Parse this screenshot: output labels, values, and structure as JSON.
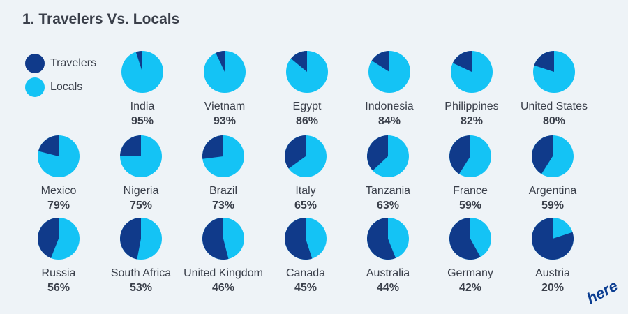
{
  "title": "1. Travelers Vs. Locals",
  "logo": "here",
  "colors": {
    "travelers": "#103a8a",
    "locals": "#14c3f5"
  },
  "legend": [
    {
      "label": "Travelers",
      "color": "#103a8a"
    },
    {
      "label": "Locals",
      "color": "#14c3f5"
    }
  ],
  "chart_data": {
    "type": "pie",
    "series_names": [
      "Travelers",
      "Locals"
    ],
    "value_meaning": "Locals share (%)",
    "items": [
      {
        "country": "India",
        "locals": 95
      },
      {
        "country": "Vietnam",
        "locals": 93
      },
      {
        "country": "Egypt",
        "locals": 86
      },
      {
        "country": "Indonesia",
        "locals": 84
      },
      {
        "country": "Philippines",
        "locals": 82
      },
      {
        "country": "United States",
        "locals": 80
      },
      {
        "country": "Mexico",
        "locals": 79
      },
      {
        "country": "Nigeria",
        "locals": 75
      },
      {
        "country": "Brazil",
        "locals": 73
      },
      {
        "country": "Italy",
        "locals": 65
      },
      {
        "country": "Tanzania",
        "locals": 63
      },
      {
        "country": "France",
        "locals": 59
      },
      {
        "country": "Argentina",
        "locals": 59
      },
      {
        "country": "Russia",
        "locals": 56
      },
      {
        "country": "South Africa",
        "locals": 53
      },
      {
        "country": "United Kingdom",
        "locals": 46
      },
      {
        "country": "Canada",
        "locals": 45
      },
      {
        "country": "Australia",
        "locals": 44
      },
      {
        "country": "Germany",
        "locals": 42
      },
      {
        "country": "Austria",
        "locals": 20
      }
    ]
  }
}
